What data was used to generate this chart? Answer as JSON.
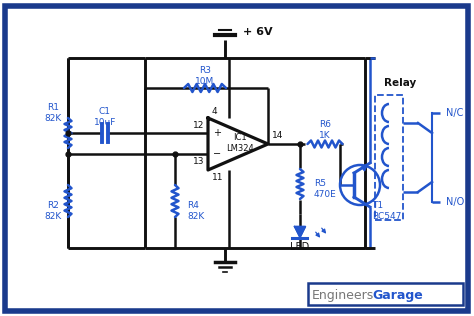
{
  "bg_color": "#ffffff",
  "border_color": "#1a3a8c",
  "circuit_color": "#2255cc",
  "black_color": "#111111",
  "line_width": 1.8,
  "border_width": 4,
  "vcc_label": "+ 6V",
  "relay_label": "Relay",
  "nc_label": "N/C",
  "no_label": "N/O",
  "r1_label": "R1\n82K",
  "r2_label": "R2\n82K",
  "r3_label": "R3\n10M",
  "r4_label": "R4\n82K",
  "r5_label": "R5\n470E",
  "r6_label": "R6\n1K",
  "c1_label": "C1\n10uF",
  "ic_label": "IC1\nLM324",
  "led_label": "LED",
  "t1_label": "T1\nBC547",
  "pin4": "4",
  "pin11": "11",
  "pin12": "12",
  "pin13": "13",
  "pin14": "14",
  "watermark_engineers": "Engineers",
  "watermark_garage": "Garage"
}
